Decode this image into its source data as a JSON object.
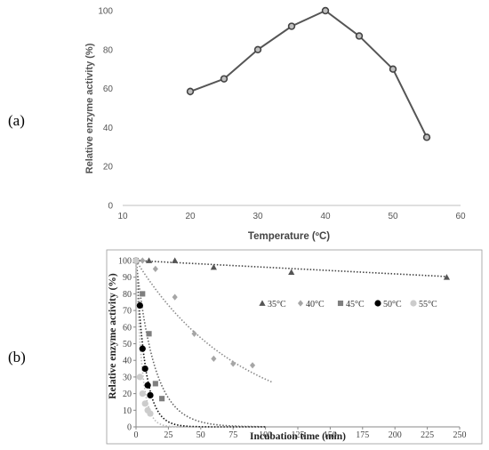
{
  "panels": {
    "a": "(a)",
    "b": "(b)"
  },
  "chart_data": [
    {
      "type": "line",
      "xlabel": "Temperature (ºC)",
      "ylabel": "Relative enzyme activity (%)",
      "xlim": [
        10,
        60
      ],
      "ylim": [
        0,
        100
      ],
      "xticks": [
        10,
        20,
        30,
        40,
        50,
        60
      ],
      "yticks": [
        0,
        20,
        40,
        60,
        80,
        100
      ],
      "x": [
        20,
        25,
        30,
        35,
        40,
        45,
        50,
        55
      ],
      "y": [
        58.5,
        65,
        80,
        92,
        100,
        87,
        70,
        35
      ],
      "error": [
        2,
        1,
        1,
        1,
        0.5,
        1,
        1,
        0.5
      ],
      "colors": {
        "line": "#555555",
        "marker_edge": "#444444",
        "marker_face": "#bfbfbf"
      },
      "grid": false
    },
    {
      "type": "scatter",
      "xlabel": "Incubation time (min)",
      "ylabel": "Relative enzyme activity (%)",
      "xlim": [
        0,
        250
      ],
      "ylim": [
        0,
        100
      ],
      "xticks": [
        0,
        25,
        50,
        75,
        100,
        125,
        150,
        175,
        200,
        225,
        250
      ],
      "yticks": [
        0,
        10,
        20,
        30,
        40,
        50,
        60,
        70,
        80,
        90,
        100
      ],
      "legend_position": "center-right",
      "series": [
        {
          "name": "35°C",
          "marker": "triangle",
          "color": "#555555",
          "x": [
            0,
            10,
            30,
            60,
            120,
            240
          ],
          "y": [
            100,
            100,
            100,
            96,
            93,
            90
          ],
          "fit": {
            "kind": "linear",
            "a": 100,
            "k": 0.04,
            "x_end": 240,
            "color": "#444444"
          }
        },
        {
          "name": "40°C",
          "marker": "diamond",
          "color": "#a6a6a6",
          "x": [
            0,
            5,
            15,
            30,
            45,
            60,
            75,
            90
          ],
          "y": [
            100,
            100,
            95,
            78,
            56,
            41,
            38,
            37
          ],
          "fit": {
            "kind": "exponential",
            "a": 100,
            "k": 0.0125,
            "x_end": 105,
            "color": "#8c8c8c"
          }
        },
        {
          "name": "45°C",
          "marker": "square",
          "color": "#7f7f7f",
          "x": [
            0,
            5,
            10,
            15,
            20
          ],
          "y": [
            100,
            80,
            56,
            26,
            17
          ],
          "fit": {
            "kind": "exponential",
            "a": 100,
            "k": 0.07,
            "x_end": 100,
            "color": "#666666"
          }
        },
        {
          "name": "50°C",
          "marker": "circle",
          "color": "#000000",
          "x": [
            0,
            3,
            5,
            7,
            9,
            11
          ],
          "y": [
            100,
            73,
            47,
            35,
            25,
            19
          ],
          "fit": {
            "kind": "exponential",
            "a": 100,
            "k": 0.14,
            "x_end": 100,
            "color": "#111111"
          }
        },
        {
          "name": "55°C",
          "marker": "circle",
          "color": "#cccccc",
          "x": [
            0,
            3,
            5,
            7,
            9,
            11
          ],
          "y": [
            100,
            30,
            20,
            14,
            10,
            8
          ],
          "fit": {
            "kind": "exponential",
            "a": 100,
            "k": 0.22,
            "x_end": 100,
            "color": "#bbbbbb"
          }
        }
      ],
      "grid": false
    }
  ]
}
